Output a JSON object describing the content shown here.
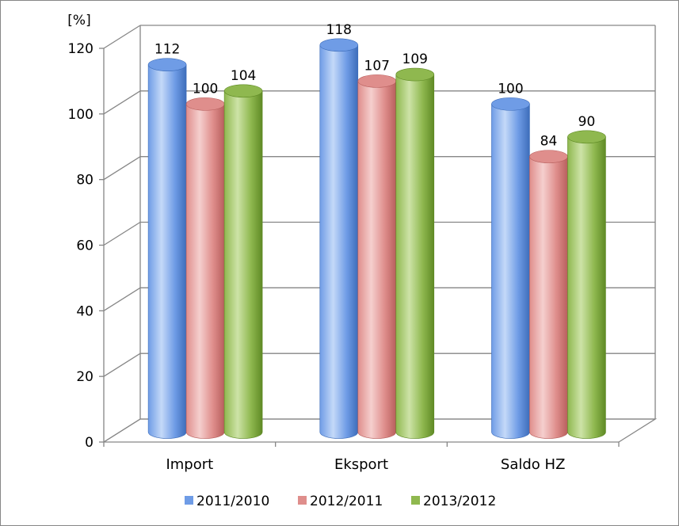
{
  "chart_data": {
    "type": "bar",
    "unit_label": "[%]",
    "title": "",
    "xlabel": "",
    "ylabel": "",
    "categories": [
      "Import",
      "Eksport",
      "Saldo HZ"
    ],
    "series": [
      {
        "name": "2011/2010",
        "values": [
          112,
          118,
          100
        ],
        "color": "#6f9ce6",
        "color_light": "#c4d9f8",
        "color_dark": "#3d6dba"
      },
      {
        "name": "2012/2011",
        "values": [
          100,
          107,
          84
        ],
        "color": "#df8e8c",
        "color_light": "#f5cfce",
        "color_dark": "#b85f5d"
      },
      {
        "name": "2013/2012",
        "values": [
          104,
          109,
          90
        ],
        "color": "#8fb84f",
        "color_light": "#cde3a7",
        "color_dark": "#5f8a25"
      }
    ],
    "ylim": [
      0,
      120
    ],
    "yticks": [
      0,
      20,
      40,
      60,
      80,
      100,
      120
    ],
    "grid": true,
    "legend": "bottom",
    "style": "3d-cylinder"
  }
}
